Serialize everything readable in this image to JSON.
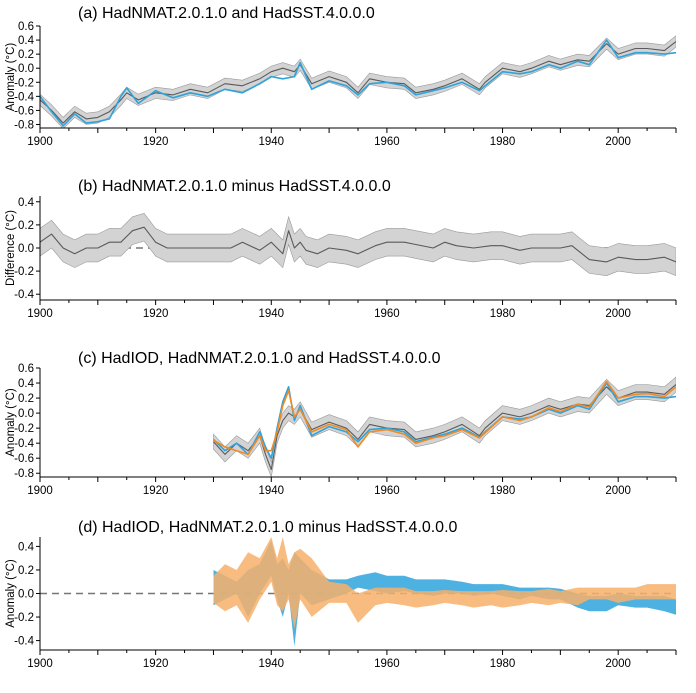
{
  "colors": {
    "hadnmat": "#5a5a5a",
    "hadnmat_band": "#d3d3d3",
    "hadsst": "#2ea3dc",
    "hadiod": "#f08a24",
    "hadiod_band": "#f7b06a",
    "zero": "#777777"
  },
  "footer_credit": "",
  "chart_data": [
    {
      "type": "area",
      "title": "(a) HadNMAT.2.0.1.0 and HadSST.4.0.0.0",
      "ylabel": "Anomaly (°C)",
      "xlim": [
        1900,
        2010
      ],
      "ylim": [
        -0.85,
        0.6
      ],
      "yticks": [
        0.6,
        0.4,
        0.2,
        0.0,
        -0.2,
        -0.4,
        -0.6,
        -0.8
      ],
      "ytick_labels": [
        "0.6",
        "0.4",
        "0.2",
        "0.0",
        "-0.2",
        "-0.4",
        "-0.6",
        "-0.8"
      ],
      "xticks": [
        1900,
        1920,
        1940,
        1960,
        1980,
        2000
      ],
      "xtick_labels": [
        "1900",
        "1920",
        "1940",
        "1960",
        "1980",
        "2000"
      ],
      "zero_line": false,
      "series": [
        {
          "name": "HadNMAT.2.0.1.0",
          "color": "#5a5a5a",
          "band_color": "#d3d3d3",
          "band_halfwidth": 0.08,
          "x": [
            1900,
            1902,
            1904,
            1906,
            1908,
            1910,
            1912,
            1914,
            1915,
            1917,
            1920,
            1923,
            1926,
            1929,
            1932,
            1935,
            1938,
            1940,
            1942,
            1944,
            1945,
            1947,
            1950,
            1953,
            1955,
            1957,
            1960,
            1963,
            1965,
            1968,
            1970,
            1973,
            1976,
            1977,
            1980,
            1983,
            1985,
            1988,
            1990,
            1993,
            1995,
            1998,
            2000,
            2003,
            2005,
            2008,
            2010
          ],
          "y": [
            -0.45,
            -0.6,
            -0.78,
            -0.62,
            -0.72,
            -0.7,
            -0.62,
            -0.45,
            -0.35,
            -0.45,
            -0.35,
            -0.38,
            -0.3,
            -0.35,
            -0.22,
            -0.25,
            -0.15,
            -0.05,
            0.0,
            -0.05,
            0.05,
            -0.22,
            -0.12,
            -0.2,
            -0.35,
            -0.15,
            -0.2,
            -0.22,
            -0.35,
            -0.3,
            -0.25,
            -0.15,
            -0.3,
            -0.2,
            0.0,
            -0.05,
            0.0,
            0.1,
            0.05,
            0.12,
            0.1,
            0.35,
            0.2,
            0.28,
            0.28,
            0.25,
            0.38
          ]
        },
        {
          "name": "HadSST.4.0.0.0",
          "color": "#2ea3dc",
          "x": [
            1900,
            1902,
            1904,
            1906,
            1908,
            1910,
            1912,
            1914,
            1915,
            1917,
            1920,
            1923,
            1926,
            1929,
            1932,
            1935,
            1938,
            1940,
            1942,
            1944,
            1945,
            1947,
            1950,
            1953,
            1955,
            1957,
            1960,
            1963,
            1965,
            1968,
            1970,
            1973,
            1976,
            1977,
            1980,
            1983,
            1985,
            1988,
            1990,
            1993,
            1995,
            1998,
            2000,
            2003,
            2005,
            2008,
            2010
          ],
          "y": [
            -0.4,
            -0.62,
            -0.82,
            -0.65,
            -0.78,
            -0.76,
            -0.72,
            -0.4,
            -0.28,
            -0.5,
            -0.32,
            -0.42,
            -0.35,
            -0.4,
            -0.3,
            -0.35,
            -0.22,
            -0.12,
            -0.15,
            -0.12,
            0.08,
            -0.3,
            -0.18,
            -0.25,
            -0.38,
            -0.22,
            -0.2,
            -0.25,
            -0.38,
            -0.32,
            -0.28,
            -0.2,
            -0.32,
            -0.25,
            -0.05,
            -0.08,
            -0.05,
            0.05,
            0.0,
            0.1,
            0.05,
            0.4,
            0.15,
            0.22,
            0.22,
            0.2,
            0.22
          ]
        }
      ]
    },
    {
      "type": "area",
      "title": "(b) HadNMAT.2.0.1.0 minus HadSST.4.0.0.0",
      "ylabel": "Difference (°C)",
      "xlim": [
        1900,
        2010
      ],
      "ylim": [
        -0.45,
        0.45
      ],
      "yticks": [
        0.4,
        0.2,
        0.0,
        -0.2,
        -0.4
      ],
      "ytick_labels": [
        "0.4",
        "0.2",
        "0.0",
        "-0.2",
        "-0.4"
      ],
      "xticks": [
        1900,
        1920,
        1940,
        1960,
        1980,
        2000
      ],
      "xtick_labels": [
        "1900",
        "1920",
        "1940",
        "1960",
        "1980",
        "2000"
      ],
      "zero_line": true,
      "series": [
        {
          "name": "HadNMAT.2.0.1.0 minus HadSST.4.0.0.0",
          "color": "#5a5a5a",
          "band_color": "#d3d3d3",
          "band_halfwidth": 0.12,
          "x": [
            1900,
            1902,
            1904,
            1906,
            1908,
            1910,
            1912,
            1914,
            1916,
            1918,
            1920,
            1922,
            1925,
            1928,
            1930,
            1933,
            1935,
            1938,
            1940,
            1942,
            1943,
            1944,
            1945,
            1946,
            1948,
            1950,
            1953,
            1955,
            1958,
            1960,
            1963,
            1965,
            1968,
            1970,
            1972,
            1975,
            1978,
            1980,
            1983,
            1985,
            1988,
            1990,
            1992,
            1995,
            1998,
            2000,
            2003,
            2005,
            2008,
            2010
          ],
          "y": [
            0.05,
            0.12,
            0.0,
            -0.05,
            0.0,
            0.0,
            0.05,
            0.05,
            0.15,
            0.18,
            0.05,
            0.0,
            0.0,
            0.0,
            0.0,
            0.0,
            0.05,
            -0.02,
            0.05,
            -0.05,
            0.15,
            0.0,
            0.05,
            -0.02,
            -0.05,
            0.0,
            -0.02,
            -0.05,
            0.02,
            0.05,
            0.05,
            0.03,
            0.0,
            0.05,
            0.02,
            0.0,
            0.02,
            0.02,
            -0.02,
            0.0,
            0.0,
            0.0,
            0.02,
            -0.1,
            -0.12,
            -0.08,
            -0.1,
            -0.1,
            -0.08,
            -0.12
          ]
        }
      ]
    },
    {
      "type": "area",
      "title": "(c) HadIOD, HadNMAT.2.0.1.0 and HadSST.4.0.0.0",
      "ylabel": "Anomaly (°C)",
      "xlim": [
        1900,
        2010
      ],
      "ylim": [
        -0.85,
        0.6
      ],
      "yticks": [
        0.6,
        0.4,
        0.2,
        0.0,
        -0.2,
        -0.4,
        -0.6,
        -0.8
      ],
      "ytick_labels": [
        "0.6",
        "0.4",
        "0.2",
        "0.0",
        "-0.2",
        "-0.4",
        "-0.6",
        "-0.8"
      ],
      "xticks": [
        1900,
        1920,
        1940,
        1960,
        1980,
        2000
      ],
      "xtick_labels": [
        "1900",
        "1920",
        "1940",
        "1960",
        "1980",
        "2000"
      ],
      "zero_line": false,
      "series": [
        {
          "name": "HadNMAT.2.0.1.0",
          "color": "#5a5a5a",
          "band_color": "#d3d3d3",
          "band_halfwidth": 0.1,
          "x": [
            1930,
            1932,
            1934,
            1936,
            1938,
            1939,
            1940,
            1941,
            1942,
            1943,
            1944,
            1945,
            1947,
            1950,
            1953,
            1955,
            1957,
            1960,
            1963,
            1965,
            1968,
            1970,
            1973,
            1976,
            1977,
            1980,
            1983,
            1985,
            1988,
            1990,
            1993,
            1995,
            1998,
            2000,
            2003,
            2005,
            2008,
            2010
          ],
          "y": [
            -0.38,
            -0.55,
            -0.4,
            -0.5,
            -0.3,
            -0.55,
            -0.75,
            -0.3,
            -0.1,
            0.0,
            -0.05,
            0.05,
            -0.22,
            -0.12,
            -0.2,
            -0.35,
            -0.15,
            -0.2,
            -0.22,
            -0.35,
            -0.3,
            -0.25,
            -0.15,
            -0.3,
            -0.2,
            0.0,
            -0.05,
            0.0,
            0.1,
            0.05,
            0.12,
            0.1,
            0.35,
            0.2,
            0.28,
            0.28,
            0.25,
            0.38
          ]
        },
        {
          "name": "HadSST.4.0.0.0",
          "color": "#2ea3dc",
          "x": [
            1930,
            1932,
            1934,
            1936,
            1938,
            1939,
            1940,
            1941,
            1942,
            1943,
            1944,
            1945,
            1947,
            1950,
            1953,
            1955,
            1957,
            1960,
            1963,
            1965,
            1968,
            1970,
            1973,
            1976,
            1977,
            1980,
            1983,
            1985,
            1988,
            1990,
            1993,
            1995,
            1998,
            2000,
            2003,
            2005,
            2008,
            2010
          ],
          "y": [
            -0.35,
            -0.5,
            -0.4,
            -0.55,
            -0.25,
            -0.45,
            -0.6,
            -0.2,
            0.15,
            0.35,
            -0.1,
            0.1,
            -0.3,
            -0.18,
            -0.25,
            -0.38,
            -0.22,
            -0.2,
            -0.25,
            -0.38,
            -0.32,
            -0.28,
            -0.2,
            -0.32,
            -0.25,
            -0.05,
            -0.08,
            -0.05,
            0.05,
            0.0,
            0.1,
            0.05,
            0.4,
            0.15,
            0.22,
            0.22,
            0.2,
            0.22
          ]
        },
        {
          "name": "HadIOD",
          "color": "#f08a24",
          "x": [
            1930,
            1932,
            1934,
            1936,
            1938,
            1939,
            1940,
            1941,
            1942,
            1943,
            1944,
            1945,
            1947,
            1950,
            1953,
            1955,
            1957,
            1960,
            1963,
            1965,
            1968,
            1970,
            1973,
            1976,
            1977,
            1980,
            1983,
            1985,
            1988,
            1990,
            1993,
            1995,
            1998,
            2000,
            2003,
            2005,
            2008,
            2010
          ],
          "y": [
            -0.36,
            -0.45,
            -0.5,
            -0.55,
            -0.3,
            -0.5,
            -0.5,
            -0.25,
            0.1,
            0.3,
            -0.05,
            0.05,
            -0.25,
            -0.15,
            -0.22,
            -0.45,
            -0.25,
            -0.22,
            -0.28,
            -0.4,
            -0.33,
            -0.3,
            -0.22,
            -0.33,
            -0.26,
            -0.05,
            -0.1,
            -0.05,
            0.07,
            0.02,
            0.12,
            0.08,
            0.42,
            0.2,
            0.25,
            0.26,
            0.22,
            0.35
          ]
        }
      ]
    },
    {
      "type": "area",
      "title": "(d) HadIOD, HadNMAT.2.0.1.0 minus HadSST.4.0.0.0",
      "ylabel": "Anomaly (°C)",
      "xlim": [
        1900,
        2010
      ],
      "ylim": [
        -0.48,
        0.48
      ],
      "yticks": [
        0.4,
        0.2,
        0.0,
        -0.2,
        -0.4
      ],
      "ytick_labels": [
        "0.4",
        "0.2",
        "0.0",
        "-0.2",
        "-0.4"
      ],
      "xticks": [
        1900,
        1920,
        1940,
        1960,
        1980,
        2000
      ],
      "xtick_labels": [
        "1900",
        "1920",
        "1940",
        "1960",
        "1980",
        "2000"
      ],
      "zero_line": true,
      "series": [
        {
          "name": "HadIOD minus HadSST.4.0.0.0",
          "color": "#2ea3dc",
          "x": [
            1930,
            1932,
            1934,
            1936,
            1938,
            1940,
            1941,
            1942,
            1943,
            1944,
            1945,
            1947,
            1950,
            1953,
            1955,
            1958,
            1960,
            1963,
            1965,
            1968,
            1970,
            1973,
            1975,
            1978,
            1980,
            1983,
            1985,
            1988,
            1990,
            1993,
            1995,
            1998,
            2000,
            2003,
            2005,
            2008,
            2010
          ],
          "lower": [
            -0.1,
            -0.05,
            0.0,
            -0.2,
            0.0,
            0.15,
            -0.05,
            -0.2,
            0.0,
            -0.45,
            0.0,
            -0.1,
            -0.05,
            0.0,
            0.05,
            0.02,
            0.0,
            0.02,
            0.0,
            -0.02,
            0.0,
            0.0,
            -0.02,
            0.0,
            -0.02,
            -0.05,
            -0.02,
            -0.05,
            -0.05,
            -0.12,
            -0.15,
            -0.15,
            -0.1,
            -0.12,
            -0.12,
            -0.15,
            -0.18
          ],
          "upper": [
            0.2,
            0.15,
            0.1,
            0.2,
            0.25,
            0.45,
            0.25,
            0.3,
            0.2,
            0.35,
            0.3,
            0.2,
            0.12,
            0.12,
            0.15,
            0.18,
            0.15,
            0.15,
            0.12,
            0.12,
            0.12,
            0.1,
            0.08,
            0.08,
            0.08,
            0.05,
            0.05,
            0.05,
            0.04,
            0.0,
            -0.02,
            -0.02,
            0.0,
            -0.02,
            -0.02,
            -0.02,
            -0.05
          ]
        },
        {
          "name": "HadNMAT.2.0.1.0 minus HadSST.4.0.0.0",
          "color": "#f7b06a",
          "x": [
            1930,
            1932,
            1934,
            1936,
            1938,
            1940,
            1941,
            1942,
            1943,
            1944,
            1945,
            1947,
            1950,
            1953,
            1955,
            1958,
            1960,
            1963,
            1965,
            1968,
            1970,
            1973,
            1975,
            1978,
            1980,
            1983,
            1985,
            1988,
            1990,
            1993,
            1995,
            1998,
            2000,
            2003,
            2005,
            2008,
            2010
          ],
          "lower": [
            -0.08,
            -0.15,
            -0.1,
            -0.25,
            -0.05,
            0.1,
            -0.1,
            -0.15,
            -0.05,
            -0.3,
            -0.05,
            -0.2,
            -0.08,
            -0.08,
            -0.25,
            -0.1,
            -0.08,
            -0.1,
            -0.12,
            -0.1,
            -0.08,
            -0.1,
            -0.12,
            -0.1,
            -0.12,
            -0.1,
            -0.08,
            -0.1,
            -0.08,
            -0.1,
            -0.05,
            -0.05,
            -0.08,
            -0.05,
            -0.05,
            -0.05,
            -0.05
          ],
          "upper": [
            0.15,
            0.25,
            0.2,
            0.35,
            0.3,
            0.48,
            0.3,
            0.48,
            0.25,
            0.35,
            0.38,
            0.3,
            0.1,
            0.08,
            0.0,
            0.05,
            0.05,
            0.05,
            0.02,
            0.02,
            0.03,
            0.02,
            0.02,
            0.02,
            0.03,
            0.02,
            0.02,
            0.04,
            0.02,
            0.05,
            0.05,
            0.05,
            0.05,
            0.05,
            0.08,
            0.08,
            0.08
          ]
        }
      ]
    }
  ]
}
